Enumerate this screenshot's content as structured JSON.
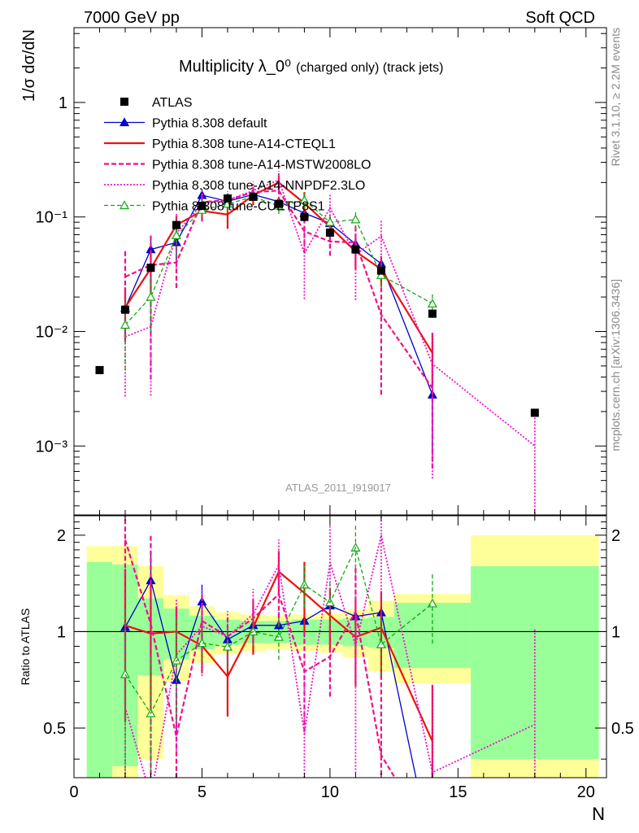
{
  "header": {
    "left": "7000 GeV pp",
    "right": "Soft QCD"
  },
  "side": {
    "rivet": "Rivet 3.1.10, ≥ 2.2M events",
    "mcplots": "mcplots.cern.ch [arXiv:1306.3436]"
  },
  "chart_data": {
    "type": "scatter",
    "title": "Multiplicity λ_0⁰",
    "subtitle": "(charged only) (track jets)",
    "watermark": "ATLAS_2011_I919017",
    "xlabel": "N",
    "ylabel": "1/σ dσ/dN",
    "ratio_ylabel": "Ratio to ATLAS",
    "xlim": [
      0,
      20.8
    ],
    "ylim": [
      0.00025,
      4.5
    ],
    "yscale": "log",
    "ratio_ylim": [
      0.35,
      2.3
    ],
    "x_ticks": [
      "0",
      "5",
      "10",
      "15",
      "20"
    ],
    "y_ticks": [
      "10⁻³",
      "10⁻²",
      "10⁻¹",
      "1"
    ],
    "ratio_ticks": [
      "0.5",
      "1",
      "2"
    ],
    "legend_position": "top-left",
    "data": {
      "name": "ATLAS",
      "color": "#000000",
      "x": [
        1,
        2,
        3,
        4,
        5,
        6,
        7,
        8,
        9,
        10,
        11,
        12,
        14,
        18
      ],
      "y": [
        0.0046,
        0.0155,
        0.036,
        0.085,
        0.125,
        0.145,
        0.15,
        0.13,
        0.1,
        0.073,
        0.052,
        0.034,
        0.0143,
        0.00195
      ],
      "bins": [
        [
          0.5,
          1.5
        ],
        [
          1.5,
          2.5
        ],
        [
          2.5,
          3.5
        ],
        [
          3.5,
          4.5
        ],
        [
          4.5,
          5.5
        ],
        [
          5.5,
          6.5
        ],
        [
          6.5,
          7.5
        ],
        [
          7.5,
          8.5
        ],
        [
          8.5,
          9.5
        ],
        [
          9.5,
          10.5
        ],
        [
          10.5,
          11.5
        ],
        [
          11.5,
          12.5
        ],
        [
          12.5,
          15.5
        ],
        [
          15.5,
          20.5
        ]
      ],
      "stat_rel": [
        0.65,
        0.62,
        0.27,
        0.18,
        0.12,
        0.09,
        0.08,
        0.08,
        0.09,
        0.09,
        0.1,
        0.11,
        0.23,
        0.6
      ],
      "total_rel": [
        0.85,
        0.85,
        0.6,
        0.3,
        0.2,
        0.15,
        0.13,
        0.12,
        0.13,
        0.14,
        0.17,
        0.25,
        0.31,
        1.0
      ]
    },
    "series": [
      {
        "name": "Pythia 8.308 default",
        "color": "#0000cc",
        "dash": "",
        "width": 1.3,
        "marker": "triangle",
        "x": [
          2,
          3,
          4,
          5,
          6,
          7,
          8,
          9,
          10,
          11,
          12,
          14
        ],
        "y": [
          0.016,
          0.052,
          0.06,
          0.155,
          0.137,
          0.157,
          0.136,
          0.108,
          0.088,
          0.058,
          0.039,
          0.0028
        ],
        "err": [
          0.2,
          0.22,
          0.3,
          0.13,
          0.1,
          0.09,
          0.1,
          0.11,
          0.12,
          0.13,
          0.15,
          0.7
        ]
      },
      {
        "name": "Pythia 8.308 tune-A14-CTEQL1",
        "color": "#ee1111",
        "dash": "",
        "width": 2.2,
        "marker": "none",
        "x": [
          2,
          3,
          4,
          5,
          6,
          7,
          8,
          9,
          10,
          11,
          12,
          14
        ],
        "y": [
          0.0162,
          0.0355,
          0.085,
          0.113,
          0.105,
          0.155,
          0.2,
          0.132,
          0.082,
          0.05,
          0.035,
          0.0065
        ],
        "err": [
          0.5,
          0.45,
          0.2,
          0.18,
          0.25,
          0.18,
          0.16,
          0.25,
          0.22,
          0.3,
          0.3,
          0.5
        ]
      },
      {
        "name": "Pythia 8.308 tune-A14-MSTW2008LO",
        "color": "#ee1188",
        "dash": "6,3",
        "width": 2.2,
        "marker": "none",
        "x": [
          2,
          3,
          4,
          5,
          6,
          7,
          8,
          9,
          10,
          11,
          12,
          14
        ],
        "y": [
          0.03,
          0.038,
          0.04,
          0.135,
          0.14,
          0.165,
          0.17,
          0.075,
          0.061,
          0.06,
          0.014,
          0.0032
        ],
        "err": [
          0.7,
          0.9,
          0.4,
          0.2,
          0.15,
          0.15,
          0.2,
          0.35,
          0.25,
          0.4,
          0.8,
          0.8
        ]
      },
      {
        "name": "Pythia 8.308 tune-A14-NNPDF2.3LO",
        "color": "#ee11cc",
        "dash": "2,2",
        "width": 1.8,
        "marker": "none",
        "x": [
          2,
          3,
          4,
          5,
          6,
          7,
          8,
          9,
          10,
          11,
          12,
          14,
          18
        ],
        "y": [
          0.009,
          0.011,
          0.072,
          0.13,
          0.14,
          0.17,
          0.21,
          0.048,
          0.12,
          0.047,
          0.068,
          0.0052,
          0.001
        ],
        "err": [
          0.7,
          0.75,
          0.5,
          0.3,
          0.2,
          0.2,
          0.2,
          0.6,
          0.3,
          0.6,
          0.4,
          0.9,
          1.0
        ]
      },
      {
        "name": "Pythia 8.308 tune-CUETP8S1",
        "color": "#11aa11",
        "dash": "5,3",
        "width": 1.3,
        "marker": "triangle-open",
        "x": [
          2,
          3,
          4,
          5,
          6,
          7,
          8,
          9,
          10,
          11,
          12,
          14
        ],
        "y": [
          0.0114,
          0.02,
          0.069,
          0.115,
          0.13,
          0.15,
          0.125,
          0.14,
          0.09,
          0.095,
          0.031,
          0.0175
        ],
        "err": [
          0.6,
          0.5,
          0.35,
          0.12,
          0.15,
          0.1,
          0.15,
          0.15,
          0.15,
          0.18,
          0.2,
          0.25
        ]
      }
    ]
  }
}
